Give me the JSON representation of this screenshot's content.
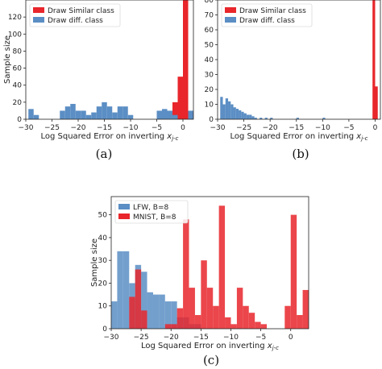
{
  "chart_data": [
    {
      "type": "bar",
      "caption": "(a)",
      "xlabel": "Log Squared Error on inverting x_{j-c}",
      "ylabel": "Sample size",
      "xlim": [
        -30,
        2
      ],
      "ylim": [
        0,
        140
      ],
      "xticks": [
        -30,
        -25,
        -20,
        -15,
        -10,
        -5,
        0
      ],
      "yticks": [
        0,
        20,
        40,
        60,
        80,
        100,
        120
      ],
      "xtick_labels": [
        "−30",
        "−25",
        "−20",
        "−15",
        "−10",
        "−5",
        "0"
      ],
      "ytick_labels": [
        "0",
        "20",
        "40",
        "60",
        "80",
        "100",
        "120"
      ],
      "legend": {
        "position": "top-left",
        "entries": [
          "Draw Similar class",
          "Draw diff. class"
        ]
      },
      "series": [
        {
          "name": "Draw Similar class",
          "color": "#e8262b",
          "bins": [
            [
              -3,
              -2,
              3
            ],
            [
              -2,
              -1,
              20
            ],
            [
              -1,
              0,
              50
            ],
            [
              0,
              1,
              140
            ]
          ]
        },
        {
          "name": "Draw diff. class",
          "color": "#5b8ec4",
          "bins": [
            [
              -29.5,
              -28.5,
              12
            ],
            [
              -28.5,
              -27.5,
              5
            ],
            [
              -23.5,
              -22.5,
              10
            ],
            [
              -22.5,
              -21.5,
              15
            ],
            [
              -21.5,
              -20.5,
              18
            ],
            [
              -20.5,
              -19.5,
              10
            ],
            [
              -19.5,
              -18.5,
              10
            ],
            [
              -18.5,
              -17.5,
              5
            ],
            [
              -17.5,
              -16.5,
              8
            ],
            [
              -16.5,
              -15.5,
              15
            ],
            [
              -15.5,
              -14.5,
              20
            ],
            [
              -14.5,
              -13.5,
              15
            ],
            [
              -13.5,
              -12.5,
              8
            ],
            [
              -12.5,
              -11.5,
              15
            ],
            [
              -11.5,
              -10.5,
              15
            ],
            [
              -10.5,
              -9.5,
              5
            ],
            [
              -5,
              -4,
              10
            ],
            [
              -4,
              -3,
              12
            ],
            [
              -3,
              -2,
              10
            ],
            [
              -2,
              -1,
              5
            ],
            [
              1,
              2,
              10
            ]
          ]
        }
      ]
    },
    {
      "type": "bar",
      "caption": "(b)",
      "xlabel": "Log Squared Error on inverting x_{j-c}",
      "ylabel": "",
      "xlim": [
        -30,
        1
      ],
      "ylim": [
        0,
        80
      ],
      "xticks": [
        -30,
        -25,
        -20,
        -15,
        -10,
        -5,
        0
      ],
      "yticks": [
        0,
        10,
        20,
        30,
        40,
        50,
        60,
        70,
        80
      ],
      "xtick_labels": [
        "−30",
        "−25",
        "−20",
        "−15",
        "−10",
        "−5",
        "0"
      ],
      "ytick_labels": [
        "0",
        "10",
        "20",
        "30",
        "40",
        "50",
        "60",
        "70",
        "80"
      ],
      "legend": {
        "position": "top-left",
        "entries": [
          "Draw Similar class",
          "Draw diff. class"
        ]
      },
      "series": [
        {
          "name": "Draw Similar class",
          "color": "#e8262b",
          "bins": [
            [
              -0.5,
              0,
              82
            ],
            [
              0,
              0.5,
              22
            ]
          ]
        },
        {
          "name": "Draw diff. class",
          "color": "#5b8ec4",
          "bins": [
            [
              -29.5,
              -29,
              15
            ],
            [
              -29,
              -28.5,
              10
            ],
            [
              -28.5,
              -28,
              14
            ],
            [
              -28,
              -27.5,
              12
            ],
            [
              -27.5,
              -27,
              10
            ],
            [
              -27,
              -26.5,
              8
            ],
            [
              -26.5,
              -26,
              7
            ],
            [
              -26,
              -25.5,
              6
            ],
            [
              -25.5,
              -25,
              5
            ],
            [
              -25,
              -24.5,
              4
            ],
            [
              -24.5,
              -24,
              3
            ],
            [
              -24,
              -23.5,
              3
            ],
            [
              -23.5,
              -23,
              2
            ],
            [
              -23,
              -22.5,
              1
            ],
            [
              -22,
              -21.5,
              1
            ],
            [
              -21,
              -20.5,
              1
            ],
            [
              -20,
              -19.5,
              1
            ],
            [
              -15,
              -14.5,
              1
            ],
            [
              -10,
              -9.5,
              1
            ]
          ]
        }
      ]
    },
    {
      "type": "bar",
      "caption": "(c)",
      "xlabel": "Log Squared Error on inverting x_{j-c}",
      "ylabel": "Sample size",
      "xlim": [
        -30,
        3
      ],
      "ylim": [
        0,
        58
      ],
      "xticks": [
        -30,
        -25,
        -20,
        -15,
        -10,
        -5,
        0
      ],
      "yticks": [
        0,
        10,
        20,
        30,
        40,
        50
      ],
      "xtick_labels": [
        "−30",
        "−25",
        "−20",
        "−15",
        "−10",
        "−5",
        "0"
      ],
      "ytick_labels": [
        "0",
        "10",
        "20",
        "30",
        "40",
        "50"
      ],
      "legend": {
        "position": "top-left",
        "entries": [
          "LFW, B=8",
          "MNIST, B=8"
        ]
      },
      "series": [
        {
          "name": "LFW, B=8",
          "color": "#5b8ec4",
          "bins": [
            [
              -30,
              -29,
              12
            ],
            [
              -29,
              -28,
              34
            ],
            [
              -28,
              -27,
              34
            ],
            [
              -27,
              -26,
              20
            ],
            [
              -26,
              -25,
              28
            ],
            [
              -25,
              -24,
              25
            ],
            [
              -24,
              -23,
              16
            ],
            [
              -23,
              -22,
              15
            ],
            [
              -22,
              -21,
              15
            ],
            [
              -21,
              -20,
              12
            ],
            [
              -20,
              -19,
              12
            ],
            [
              -19,
              -18,
              5
            ],
            [
              -18,
              -17,
              5
            ],
            [
              -17,
              -16,
              2
            ],
            [
              -16,
              -15,
              2
            ]
          ]
        },
        {
          "name": "MNIST, B=8",
          "color": "#e8262b",
          "bins": [
            [
              -27,
              -26,
              14
            ],
            [
              -26,
              -25,
              26
            ],
            [
              -25,
              -24,
              8
            ],
            [
              -21,
              -20,
              2
            ],
            [
              -20,
              -19,
              2
            ],
            [
              -19,
              -18,
              9
            ],
            [
              -18,
              -17,
              48
            ],
            [
              -17,
              -16,
              18
            ],
            [
              -16,
              -15,
              6
            ],
            [
              -15,
              -14,
              30
            ],
            [
              -14,
              -13,
              18
            ],
            [
              -13,
              -12,
              10
            ],
            [
              -12,
              -11,
              54
            ],
            [
              -11,
              -10,
              5
            ],
            [
              -10,
              -9,
              2
            ],
            [
              -9,
              -8,
              18
            ],
            [
              -8,
              -7,
              10
            ],
            [
              -7,
              -6,
              7
            ],
            [
              -6,
              -5,
              3
            ],
            [
              -5,
              -4,
              2
            ],
            [
              -1,
              0,
              10
            ],
            [
              0,
              1,
              50
            ],
            [
              1,
              2,
              6
            ],
            [
              2,
              3,
              17
            ]
          ]
        }
      ]
    }
  ]
}
